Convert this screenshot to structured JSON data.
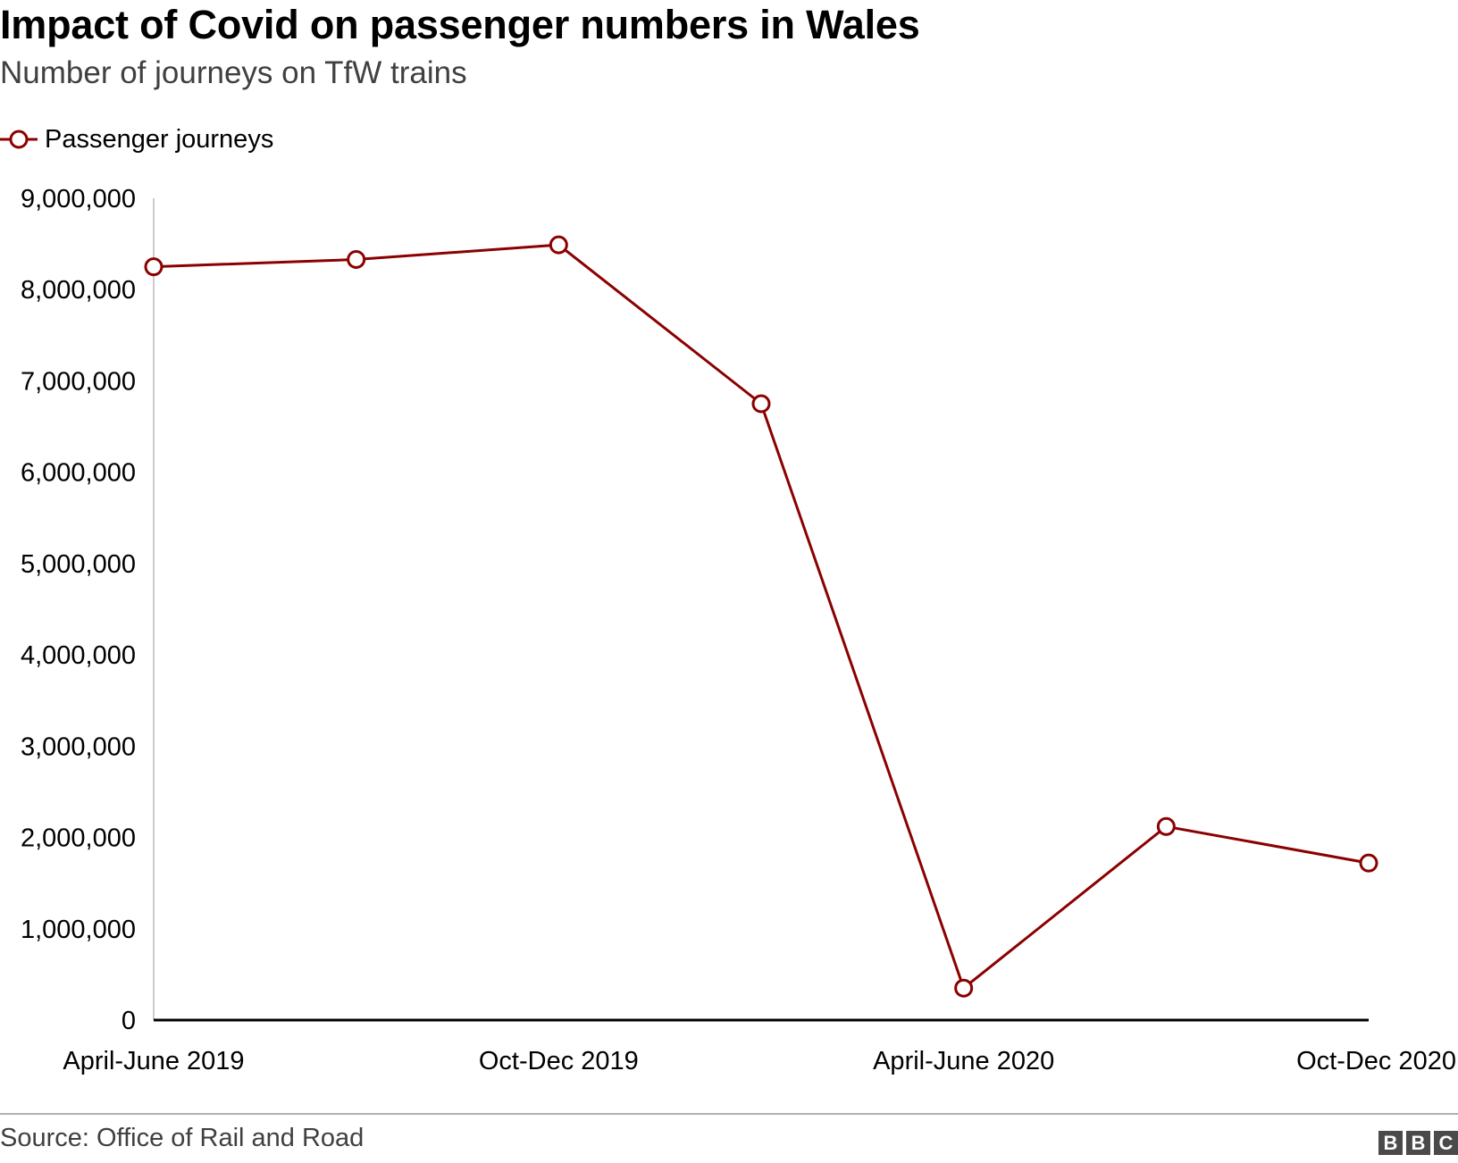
{
  "title": "Impact of Covid on passenger numbers in Wales",
  "subtitle": "Number of journeys on TfW trains",
  "legend_label": "Passenger journeys",
  "source": "Source: Office of Rail and Road",
  "logo_letters": [
    "B",
    "B",
    "C"
  ],
  "colors": {
    "series": "#8b0000",
    "axis": "#000000",
    "y_axis_line": "#cccccc",
    "subtitle": "#404040",
    "logo": "#4a4a4a"
  },
  "chart_data": {
    "type": "line",
    "title": "Impact of Covid on passenger numbers in Wales",
    "subtitle": "Number of journeys on TfW trains",
    "xlabel": "",
    "ylabel": "",
    "x_tick_labels": [
      "April-June 2019",
      "Oct-Dec 2019",
      "April-June 2020",
      "Oct-Dec 2020"
    ],
    "ylim": [
      0,
      9000000
    ],
    "y_ticks": [
      0,
      1000000,
      2000000,
      3000000,
      4000000,
      5000000,
      6000000,
      7000000,
      8000000,
      9000000
    ],
    "y_tick_labels": [
      "0",
      "1,000,000",
      "2,000,000",
      "3,000,000",
      "4,000,000",
      "5,000,000",
      "6,000,000",
      "7,000,000",
      "8,000,000",
      "9,000,000"
    ],
    "grid": false,
    "legend": "top-left",
    "series": [
      {
        "name": "Passenger journeys",
        "values": [
          8250000,
          8330000,
          8490000,
          6750000,
          350000,
          2120000,
          1720000
        ]
      }
    ]
  }
}
